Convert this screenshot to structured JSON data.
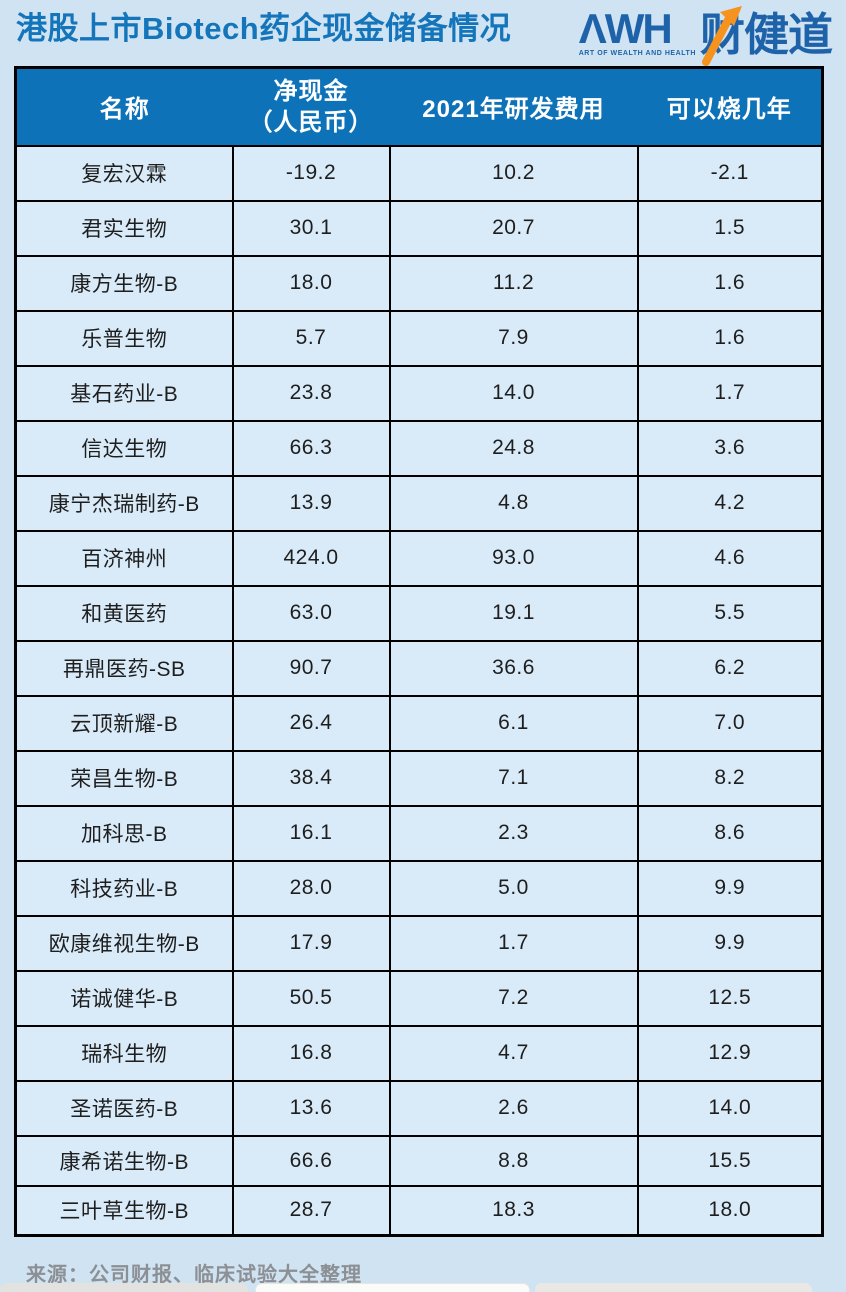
{
  "title": "港股上市Biotech药企现金储备情况",
  "logo": {
    "wordmark": "ΛWH",
    "tagline": "ART OF WEALTH AND HEALTH",
    "brand_cn": "财健道",
    "arrow_icon": "up-trend-arrow",
    "blue": "#1e63a9",
    "orange": "#f6921e"
  },
  "colors": {
    "page_bg": "#cfe3f2",
    "cell_bg": "#d9eaf8",
    "header_bg": "#0e72b9",
    "header_text": "#ffffff",
    "title_text": "#1575ba",
    "grid_border": "#000000",
    "body_text": "#1e1e1e",
    "source_text": "#8c8f93"
  },
  "header": {
    "col1": "名称",
    "col2_line1": "净现金",
    "col2_line2": "（人民币）",
    "col3": "2021年研发费用",
    "col4": "可以烧几年"
  },
  "chart_data": {
    "type": "table",
    "title": "港股上市Biotech药企现金储备情况",
    "columns": [
      "名称",
      "净现金（人民币）",
      "2021年研发费用",
      "可以烧几年"
    ],
    "row_keys": [
      "name",
      "net_cash",
      "rd_expense_2021",
      "years_runway"
    ],
    "rows": [
      {
        "name": "复宏汉霖",
        "net_cash": "-19.2",
        "rd_expense_2021": "10.2",
        "years_runway": "-2.1"
      },
      {
        "name": "君实生物",
        "net_cash": "30.1",
        "rd_expense_2021": "20.7",
        "years_runway": "1.5"
      },
      {
        "name": "康方生物-B",
        "net_cash": "18.0",
        "rd_expense_2021": "11.2",
        "years_runway": "1.6"
      },
      {
        "name": "乐普生物",
        "net_cash": "5.7",
        "rd_expense_2021": "7.9",
        "years_runway": "1.6"
      },
      {
        "name": "基石药业-B",
        "net_cash": "23.8",
        "rd_expense_2021": "14.0",
        "years_runway": "1.7"
      },
      {
        "name": "信达生物",
        "net_cash": "66.3",
        "rd_expense_2021": "24.8",
        "years_runway": "3.6"
      },
      {
        "name": "康宁杰瑞制药-B",
        "net_cash": "13.9",
        "rd_expense_2021": "4.8",
        "years_runway": "4.2"
      },
      {
        "name": "百济神州",
        "net_cash": "424.0",
        "rd_expense_2021": "93.0",
        "years_runway": "4.6"
      },
      {
        "name": "和黄医药",
        "net_cash": "63.0",
        "rd_expense_2021": "19.1",
        "years_runway": "5.5"
      },
      {
        "name": "再鼎医药-SB",
        "net_cash": "90.7",
        "rd_expense_2021": "36.6",
        "years_runway": "6.2"
      },
      {
        "name": "云顶新耀-B",
        "net_cash": "26.4",
        "rd_expense_2021": "6.1",
        "years_runway": "7.0"
      },
      {
        "name": "荣昌生物-B",
        "net_cash": "38.4",
        "rd_expense_2021": "7.1",
        "years_runway": "8.2"
      },
      {
        "name": "加科思-B",
        "net_cash": "16.1",
        "rd_expense_2021": "2.3",
        "years_runway": "8.6"
      },
      {
        "name": "科技药业-B",
        "net_cash": "28.0",
        "rd_expense_2021": "5.0",
        "years_runway": "9.9"
      },
      {
        "name": "欧康维视生物-B",
        "net_cash": "17.9",
        "rd_expense_2021": "1.7",
        "years_runway": "9.9"
      },
      {
        "name": "诺诚健华-B",
        "net_cash": "50.5",
        "rd_expense_2021": "7.2",
        "years_runway": "12.5"
      },
      {
        "name": "瑞科生物",
        "net_cash": "16.8",
        "rd_expense_2021": "4.7",
        "years_runway": "12.9"
      },
      {
        "name": "圣诺医药-B",
        "net_cash": "13.6",
        "rd_expense_2021": "2.6",
        "years_runway": "14.0"
      },
      {
        "name": "康希诺生物-B",
        "net_cash": "66.6",
        "rd_expense_2021": "8.8",
        "years_runway": "15.5"
      },
      {
        "name": "三叶草生物-B",
        "net_cash": "28.7",
        "rd_expense_2021": "18.3",
        "years_runway": "18.0"
      }
    ],
    "short_rows_from_index": 18
  },
  "footer": {
    "source": "来源：公司财报、临床试验大全整理"
  }
}
